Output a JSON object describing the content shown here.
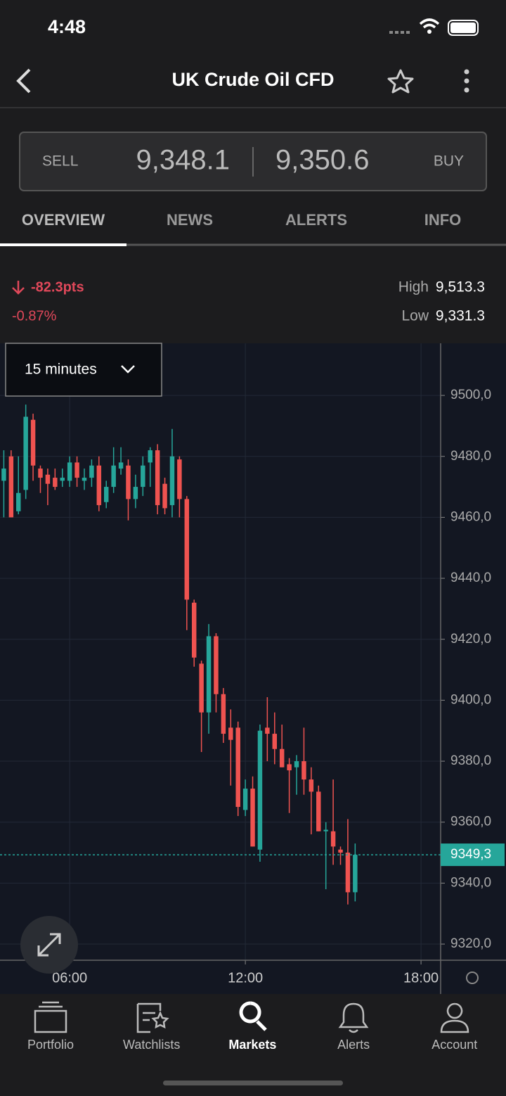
{
  "status_bar": {
    "time": "4:48"
  },
  "header": {
    "title": "UK Crude Oil CFD"
  },
  "quote": {
    "sell_label": "SELL",
    "sell_price": "9,348.1",
    "buy_price": "9,350.6",
    "buy_label": "BUY"
  },
  "tabs": [
    "OVERVIEW",
    "NEWS",
    "ALERTS",
    "INFO"
  ],
  "summary": {
    "change_points": "-82.3pts",
    "change_percent": "-0.87%",
    "high_label": "High",
    "high": "9,513.3",
    "low_label": "Low",
    "low": "9,331.3"
  },
  "interval": "15 minutes",
  "chart_data": {
    "type": "candlestick",
    "x": [
      3.75,
      4,
      4.25,
      4.5,
      4.75,
      5,
      5.25,
      5.5,
      5.75,
      6,
      6.25,
      6.5,
      6.75,
      7,
      7.25,
      7.5,
      7.75,
      8,
      8.25,
      8.5,
      8.75,
      9,
      9.25,
      9.5,
      9.75,
      10,
      10.25,
      10.5,
      10.75,
      11,
      11.25,
      11.5,
      11.75,
      12,
      12.25,
      12.5,
      12.75,
      13,
      13.25,
      13.5,
      13.75,
      14,
      14.25,
      14.5,
      14.75,
      15,
      15.25,
      15.5,
      15.75
    ],
    "open": [
      9472,
      9480,
      9462,
      9469,
      9492,
      9476,
      9474,
      9473,
      9472,
      9472,
      9478,
      9472,
      9473,
      9477,
      9465,
      9470,
      9476,
      9477,
      9466,
      9470,
      9478,
      9482,
      9471,
      9464,
      9479,
      9466,
      9432,
      9412,
      9396,
      9421,
      9402,
      9391,
      9391,
      9364,
      9371,
      9351,
      9391,
      9389,
      9384,
      9379,
      9378,
      9380,
      9374,
      9370,
      9357,
      9357,
      9351,
      9350,
      9337
    ],
    "high": [
      9482,
      9482,
      9480,
      9497,
      9494,
      9477,
      9476,
      9476,
      9476,
      9480,
      9480,
      9476,
      9479,
      9480,
      9472,
      9483,
      9483,
      9479,
      9474,
      9480,
      9483,
      9484,
      9473,
      9489,
      9480,
      9467,
      9433,
      9413,
      9425,
      9422,
      9404,
      9397,
      9393,
      9374,
      9375,
      9392,
      9401,
      9396,
      9392,
      9381,
      9382,
      9391,
      9378,
      9372,
      9360,
      9374,
      9352,
      9361,
      9353
    ],
    "low": [
      9460,
      9460,
      9461,
      9466,
      9472,
      9468,
      9464,
      9469,
      9470,
      9470,
      9470,
      9469,
      9470,
      9462,
      9463,
      9468,
      9474,
      9459,
      9463,
      9467,
      9470,
      9461,
      9461,
      9460,
      9460,
      9423,
      9411,
      9383,
      9389,
      9396,
      9386,
      9372,
      9362,
      9362,
      9352,
      9347,
      9380,
      9379,
      9378,
      9363,
      9369,
      9369,
      9356,
      9357,
      9338,
      9346,
      9346,
      9333,
      9334
    ],
    "close": [
      9476,
      9460,
      9468,
      9493,
      9477,
      9473,
      9471,
      9470,
      9473,
      9478,
      9473,
      9473,
      9477,
      9464,
      9470,
      9477,
      9478,
      9466,
      9470,
      9477,
      9482,
      9464,
      9463,
      9480,
      9466,
      9433,
      9414,
      9396,
      9421,
      9402,
      9389,
      9387,
      9365,
      9371,
      9352,
      9390,
      9389,
      9384,
      9378,
      9377,
      9380,
      9374,
      9370,
      9357,
      9357.5,
      9352,
      9350,
      9337,
      9349.3
    ],
    "up_color": "#26a69a",
    "down_color": "#ef5350",
    "xlim": [
      3.62,
      18.67
    ],
    "xticks": [
      {
        "value": 6,
        "label": "06:00"
      },
      {
        "value": 12,
        "label": "12:00"
      },
      {
        "value": 18,
        "label": "18:00"
      }
    ],
    "ylim": [
      9314.7,
      9517.1
    ],
    "yticks": [
      {
        "value": 9320,
        "label": "9320,0"
      },
      {
        "value": 9340,
        "label": "9340,0"
      },
      {
        "value": 9360,
        "label": "9360,0"
      },
      {
        "value": 9380,
        "label": "9380,0"
      },
      {
        "value": 9400,
        "label": "9400,0"
      },
      {
        "value": 9420,
        "label": "9420,0"
      },
      {
        "value": 9440,
        "label": "9440,0"
      },
      {
        "value": 9460,
        "label": "9460,0"
      },
      {
        "value": 9480,
        "label": "9480,0"
      },
      {
        "value": 9500,
        "label": "9500,0"
      }
    ],
    "grid": true,
    "last_price": {
      "value": 9349.3,
      "label": "9349,3"
    }
  },
  "nav": [
    "Portfolio",
    "Watchlists",
    "Markets",
    "Alerts",
    "Account"
  ]
}
